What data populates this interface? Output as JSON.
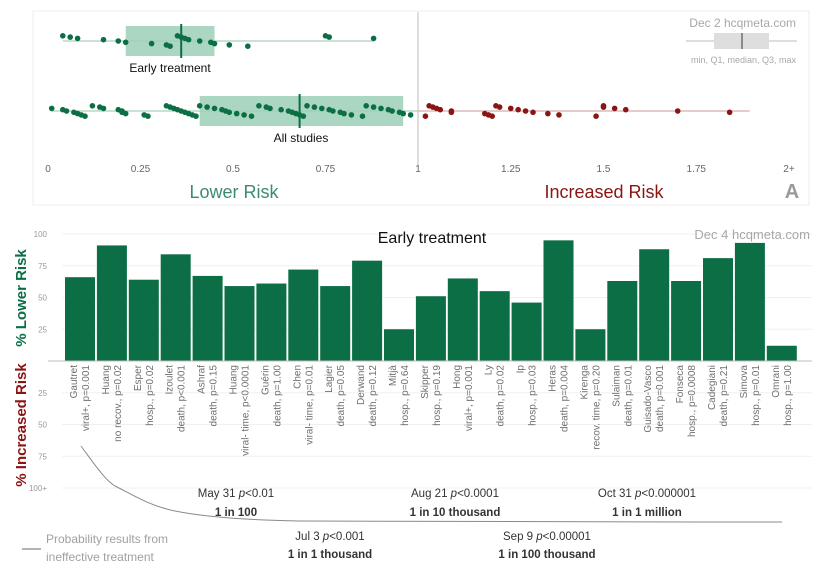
{
  "chart_data": [
    {
      "type": "scatter",
      "panel_label": "A",
      "watermark": "Dec 2 hcqmeta.com",
      "legend": {
        "text": "min, Q1, median, Q3, max",
        "placement": "top-right"
      },
      "xlabel_left": "Lower Risk",
      "xlabel_right": "Increased Risk",
      "xlim": [
        0,
        2
      ],
      "xticks": [
        "0",
        "0.25",
        "0.5",
        "0.75",
        "1",
        "1.25",
        "1.5",
        "1.75",
        "2+"
      ],
      "xtick_values": [
        0,
        0.25,
        0.5,
        0.75,
        1,
        1.25,
        1.5,
        1.75,
        2
      ],
      "reference_line": 1,
      "colors": {
        "lower": "#0b6e45",
        "increased": "#8b1414",
        "box": "#9ccfb6",
        "legend_box": "#d9d9d9",
        "axis_text": "#666666"
      },
      "series": [
        {
          "name": "Early treatment",
          "box": {
            "min": 0.04,
            "q1": 0.21,
            "median": 0.36,
            "q3": 0.45,
            "max": 0.88
          },
          "values": [
            0.04,
            0.06,
            0.08,
            0.15,
            0.19,
            0.21,
            0.28,
            0.32,
            0.33,
            0.35,
            0.36,
            0.37,
            0.38,
            0.41,
            0.44,
            0.45,
            0.49,
            0.54,
            0.75,
            0.76,
            0.88
          ]
        },
        {
          "name": "All studies",
          "box": {
            "min": 0.01,
            "q1": 0.41,
            "median": 0.68,
            "q3": 0.96,
            "max": 1.84
          },
          "values": [
            0.01,
            0.04,
            0.05,
            0.07,
            0.08,
            0.09,
            0.1,
            0.12,
            0.14,
            0.15,
            0.19,
            0.2,
            0.2,
            0.21,
            0.26,
            0.27,
            0.32,
            0.33,
            0.34,
            0.35,
            0.36,
            0.37,
            0.38,
            0.39,
            0.4,
            0.41,
            0.43,
            0.45,
            0.47,
            0.48,
            0.49,
            0.51,
            0.53,
            0.55,
            0.57,
            0.59,
            0.6,
            0.63,
            0.65,
            0.66,
            0.67,
            0.68,
            0.69,
            0.7,
            0.72,
            0.74,
            0.76,
            0.77,
            0.79,
            0.8,
            0.82,
            0.85,
            0.86,
            0.88,
            0.9,
            0.92,
            0.93,
            0.95,
            0.96,
            0.98,
            1.02,
            1.03,
            1.04,
            1.05,
            1.06,
            1.09,
            1.09,
            1.18,
            1.19,
            1.2,
            1.21,
            1.22,
            1.25,
            1.27,
            1.29,
            1.31,
            1.35,
            1.38,
            1.48,
            1.5,
            1.5,
            1.53,
            1.56,
            1.7,
            1.84
          ]
        }
      ]
    },
    {
      "type": "bar",
      "title": "Early treatment",
      "watermark": "Dec 4 hcqmeta.com",
      "ylabel_top": "% Lower Risk",
      "ylabel_bottom": "% Increased Risk",
      "yticks_top": [
        "100",
        "75",
        "50",
        "25"
      ],
      "yticks_bottom": [
        "25",
        "50",
        "75",
        "100+"
      ],
      "ylim": [
        -100,
        100
      ],
      "grid": true,
      "colors": {
        "bar": "#0b6e45",
        "lower_label": "#0b6e45",
        "increased_label": "#8b1414",
        "tick": "#999999",
        "category_text": "#6f6f6f"
      },
      "categories": [
        {
          "author": "Gautret",
          "detail": "viral+, p=0.001"
        },
        {
          "author": "Huang",
          "detail": "no recov., p=0.02"
        },
        {
          "author": "Esper",
          "detail": "hosp., p=0.02"
        },
        {
          "author": "Izoulet",
          "detail": "death, p<0.001"
        },
        {
          "author": "Ashraf",
          "detail": "death, p=0.15"
        },
        {
          "author": "Huang",
          "detail": "viral- time, p<0.0001"
        },
        {
          "author": "Guérin",
          "detail": "death, p=1.00"
        },
        {
          "author": "Chen",
          "detail": "viral- time, p=0.01"
        },
        {
          "author": "Lagier",
          "detail": "death, p=0.05"
        },
        {
          "author": "Derwand",
          "detail": "death, p=0.12"
        },
        {
          "author": "Mitjà",
          "detail": "hosp., p=0.64"
        },
        {
          "author": "Skipper",
          "detail": "hosp., p=0.19"
        },
        {
          "author": "Hong",
          "detail": "viral+, p=0.001"
        },
        {
          "author": "Ly",
          "detail": "death, p=0.02"
        },
        {
          "author": "Ip",
          "detail": "hosp., p=0.03"
        },
        {
          "author": "Heras",
          "detail": "death, p=0.004"
        },
        {
          "author": "Kirenga",
          "detail": "recov. time, p=0.20"
        },
        {
          "author": "Sulaiman",
          "detail": "death, p=0.01"
        },
        {
          "author": "Guisado-Vasco",
          "detail": "death, p=0.001"
        },
        {
          "author": "Fonseca",
          "detail": "hosp., p=0.0008"
        },
        {
          "author": "Cadegiani",
          "detail": "death, p=0.21"
        },
        {
          "author": "Simova",
          "detail": "hosp., p=0.01"
        },
        {
          "author": "Omrani",
          "detail": "hosp., p=1.00"
        }
      ],
      "values": [
        66,
        91,
        64,
        84,
        67,
        59,
        61,
        72,
        59,
        79,
        25,
        51,
        65,
        55,
        46,
        95,
        25,
        63,
        88,
        63,
        81,
        93,
        12
      ],
      "probability_curve": {
        "legend": "Probability results from ineffective treatment",
        "color": "#888888",
        "annotations": [
          {
            "date": "May 31",
            "p": "p<0.01",
            "odds": "1 in 100",
            "position": "above"
          },
          {
            "date": "Jul 3",
            "p": "p<0.001",
            "odds": "1 in 1 thousand",
            "position": "below"
          },
          {
            "date": "Aug 21",
            "p": "p<0.0001",
            "odds": "1 in 10 thousand",
            "position": "above"
          },
          {
            "date": "Sep 9",
            "p": "p<0.00001",
            "odds": "1 in 100 thousand",
            "position": "below"
          },
          {
            "date": "Oct 31",
            "p": "p<0.000001",
            "odds": "1 in 1 million",
            "position": "above"
          }
        ]
      }
    }
  ]
}
